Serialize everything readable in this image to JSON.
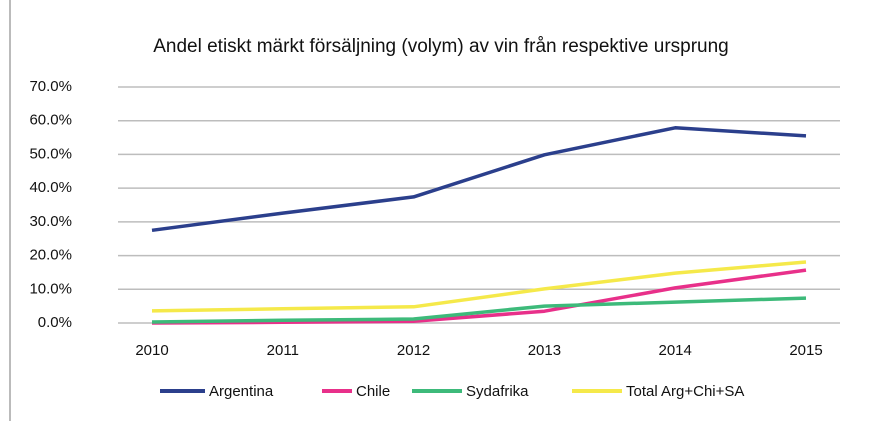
{
  "chart_data": {
    "type": "line",
    "title": "Andel etiskt märkt försäljning (volym) av vin från respektive ursprung",
    "categories": [
      "2010",
      "2011",
      "2012",
      "2013",
      "2014",
      "2015"
    ],
    "series": [
      {
        "name": "Argentina",
        "color": "#2b3f8c",
        "values": [
          27.5,
          32.6,
          37.4,
          49.9,
          57.9,
          55.5
        ]
      },
      {
        "name": "Chile",
        "color": "#e8308a",
        "values": [
          0,
          0.2,
          0.5,
          3.5,
          10.4,
          15.7
        ]
      },
      {
        "name": "Sydafrika",
        "color": "#3dba7a",
        "values": [
          0.3,
          0.8,
          1.2,
          5.0,
          6.2,
          7.4
        ]
      },
      {
        "name": "Total Arg+Chi+SA",
        "color": "#f5e94a",
        "values": [
          3.6,
          4.2,
          4.8,
          10.1,
          14.8,
          18.1
        ]
      }
    ],
    "ylim": [
      0,
      70
    ],
    "yticks": [
      {
        "value": 0,
        "label": "0.0%"
      },
      {
        "value": 10,
        "label": "10.0%"
      },
      {
        "value": 20,
        "label": "20.0%"
      },
      {
        "value": 30,
        "label": "30.0%"
      },
      {
        "value": 40,
        "label": "40.0%"
      },
      {
        "value": 50,
        "label": "50.0%"
      },
      {
        "value": 60,
        "label": "60.0%"
      },
      {
        "value": 70,
        "label": "70.0%"
      }
    ],
    "grid": true,
    "legend": "bottom"
  }
}
